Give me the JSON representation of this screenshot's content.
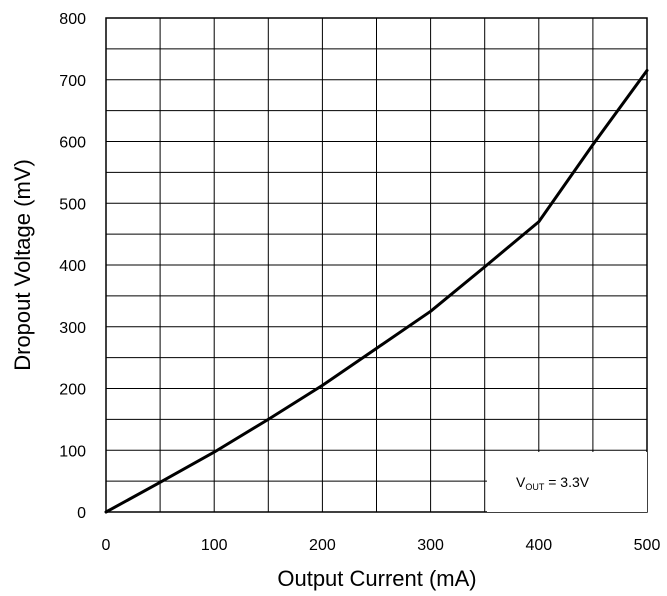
{
  "chart_data": {
    "type": "line",
    "title": "",
    "xlabel": "Output Current (mA)",
    "ylabel": "Dropout Voltage (mV)",
    "xlim": [
      0,
      500
    ],
    "ylim": [
      0,
      800
    ],
    "x_ticks": [
      "0",
      "100",
      "200",
      "300",
      "400",
      "500"
    ],
    "y_ticks": [
      "0",
      "100",
      "200",
      "300",
      "400",
      "500",
      "600",
      "700",
      "800"
    ],
    "grid": true,
    "series": [
      {
        "x": [
          0,
          50,
          100,
          150,
          200,
          250,
          300,
          350,
          400,
          450,
          500
        ],
        "y": [
          0,
          48,
          97,
          150,
          205,
          265,
          325,
          397,
          470,
          595,
          715
        ],
        "color": "#000000"
      }
    ],
    "annotation": {
      "main": "V",
      "subscript": "OUT",
      "suffix": " = 3.3V"
    }
  }
}
